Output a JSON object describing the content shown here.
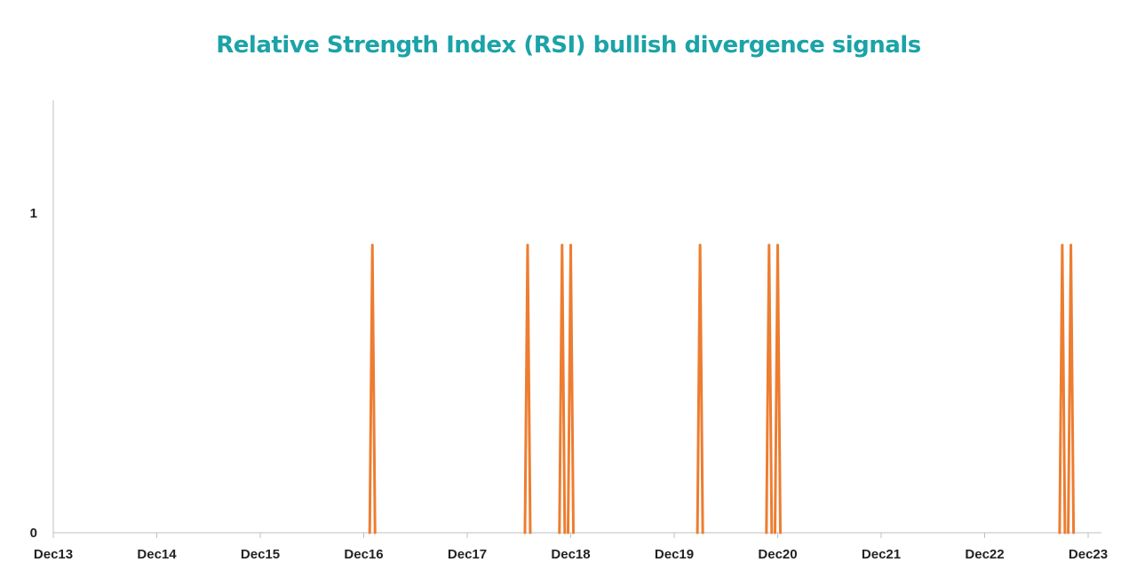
{
  "chart_data": {
    "type": "line",
    "title": "Relative Strength Index (RSI) bullish divergence signals",
    "xlabel": "",
    "ylabel": "",
    "x_ticks": [
      "Dec13",
      "Dec14",
      "Dec15",
      "Dec16",
      "Dec17",
      "Dec18",
      "Dec19",
      "Dec20",
      "Dec21",
      "Dec22",
      "Dec23"
    ],
    "y_ticks": [
      "0",
      "1"
    ],
    "ylim": [
      0,
      1.35
    ],
    "grid": false,
    "legend": "none",
    "series": [
      {
        "color": "#ED7D31",
        "signal_dates": [
          "2016-02",
          "2017-08",
          "2017-12",
          "2018-01",
          "2019-04",
          "2019-12",
          "2020-01",
          "2022-10",
          "2022-11"
        ],
        "signal_value": 0.9,
        "baseline_value": 0
      }
    ]
  },
  "colors": {
    "title": "#1BA3A8",
    "axis": "#BFBFBF",
    "series": "#ED7D31"
  }
}
